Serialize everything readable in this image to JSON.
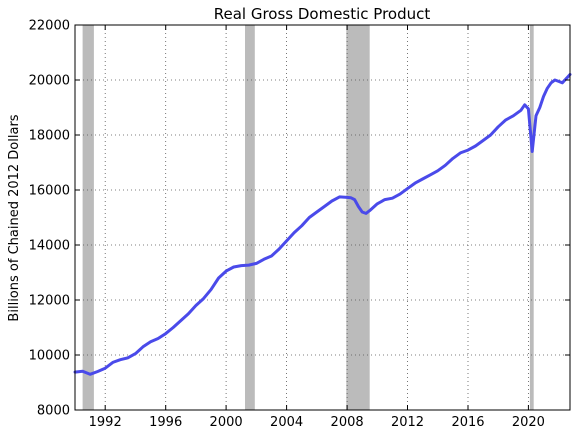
{
  "chart_data": {
    "type": "line",
    "title": "Real Gross Domestic Product",
    "xlabel": "",
    "ylabel": "Billions of Chained 2012 Dollars",
    "xlim": [
      1990.0,
      2022.75
    ],
    "ylim": [
      8000,
      22000
    ],
    "x_ticks": [
      1992,
      1996,
      2000,
      2004,
      2008,
      2012,
      2016,
      2020
    ],
    "y_ticks": [
      8000,
      10000,
      12000,
      14000,
      16000,
      18000,
      20000,
      22000
    ],
    "x_tick_labels": [
      "1992",
      "1996",
      "2000",
      "2004",
      "2008",
      "2012",
      "2016",
      "2020"
    ],
    "y_tick_labels": [
      "8000",
      "10000",
      "12000",
      "14000",
      "16000",
      "18000",
      "20000",
      "22000"
    ],
    "grid": true,
    "legend": "none",
    "colors": {
      "line": "#4a4aea",
      "recession": "#bbbbbb",
      "grid": "#555555"
    },
    "recessions": [
      [
        1990.5,
        1991.25
      ],
      [
        2001.25,
        2001.9
      ],
      [
        2007.95,
        2009.5
      ],
      [
        2020.1,
        2020.35
      ]
    ],
    "series": [
      {
        "x": [
          1990.0,
          1990.5,
          1991.0,
          1991.5,
          1992.0,
          1992.5,
          1993.0,
          1993.5,
          1994.0,
          1994.5,
          1995.0,
          1995.5,
          1996.0,
          1996.5,
          1997.0,
          1997.5,
          1998.0,
          1998.5,
          1999.0,
          1999.5,
          2000.0,
          2000.5,
          2001.0,
          2001.5,
          2002.0,
          2002.5,
          2003.0,
          2003.5,
          2004.0,
          2004.5,
          2005.0,
          2005.5,
          2006.0,
          2006.5,
          2007.0,
          2007.5,
          2008.0,
          2008.25,
          2008.5,
          2008.75,
          2009.0,
          2009.25,
          2009.5,
          2010.0,
          2010.5,
          2011.0,
          2011.5,
          2012.0,
          2012.5,
          2013.0,
          2013.5,
          2014.0,
          2014.5,
          2015.0,
          2015.5,
          2016.0,
          2016.5,
          2017.0,
          2017.5,
          2018.0,
          2018.5,
          2019.0,
          2019.5,
          2019.75,
          2020.0,
          2020.25,
          2020.5,
          2020.75,
          2021.0,
          2021.25,
          2021.5,
          2021.75,
          2022.0,
          2022.25,
          2022.5,
          2022.75
        ],
        "values": [
          9380,
          9410,
          9300,
          9400,
          9520,
          9730,
          9830,
          9900,
          10050,
          10300,
          10480,
          10600,
          10780,
          11000,
          11250,
          11500,
          11800,
          12050,
          12380,
          12800,
          13050,
          13200,
          13250,
          13270,
          13330,
          13480,
          13600,
          13850,
          14150,
          14450,
          14700,
          15000,
          15200,
          15400,
          15600,
          15750,
          15730,
          15720,
          15650,
          15400,
          15200,
          15150,
          15250,
          15500,
          15650,
          15700,
          15850,
          16050,
          16250,
          16400,
          16550,
          16700,
          16900,
          17150,
          17350,
          17450,
          17600,
          17800,
          18000,
          18300,
          18550,
          18700,
          18900,
          19100,
          18950,
          17400,
          18700,
          19000,
          19400,
          19700,
          19900,
          20000,
          19950,
          19900,
          20050,
          20200
        ]
      }
    ]
  }
}
